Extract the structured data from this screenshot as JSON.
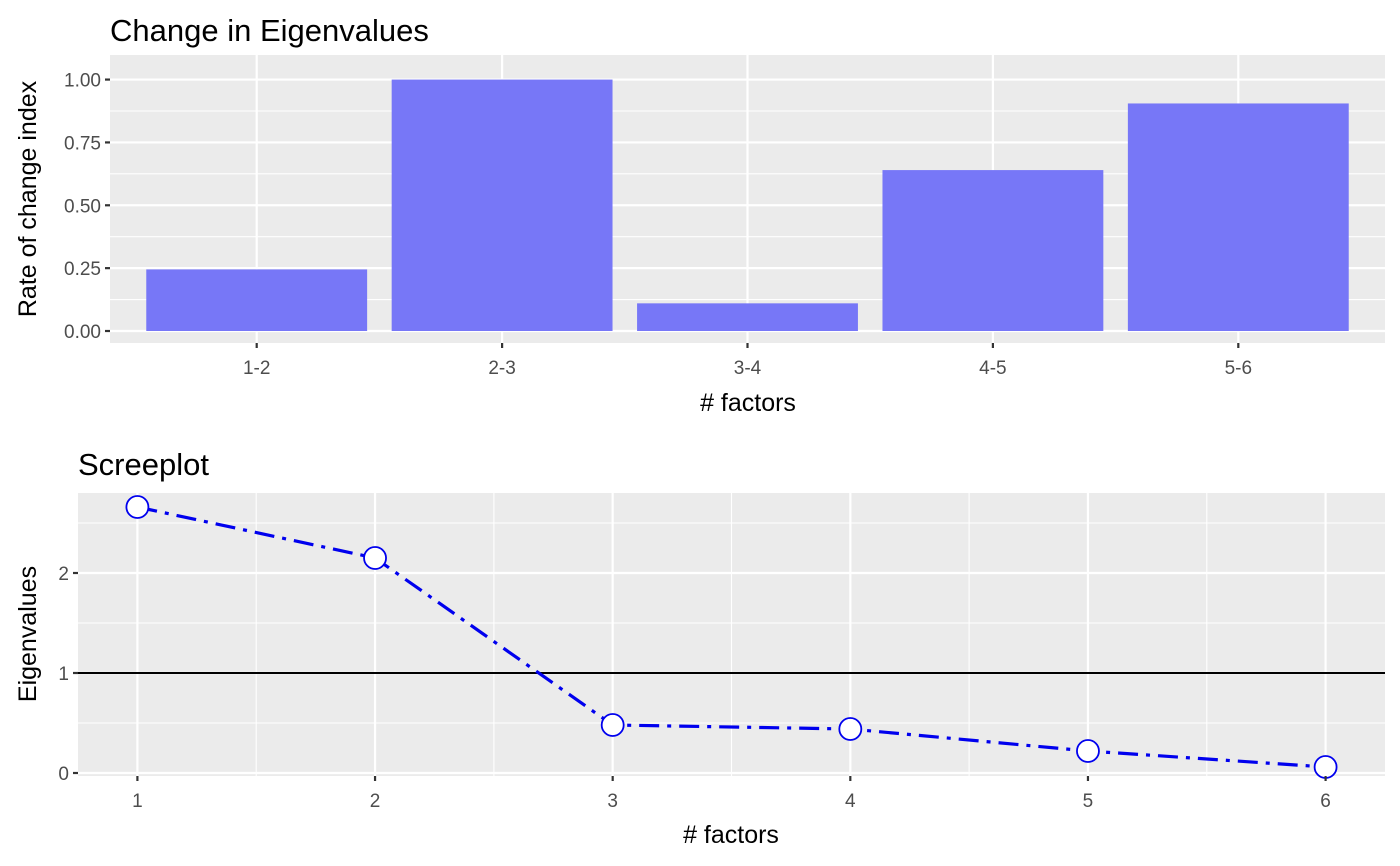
{
  "colors": {
    "panel_background": "#ebebeb",
    "grid": "#ffffff",
    "bar_fill": "#7777f7",
    "line": "#0000ee",
    "point_fill": "#ffffff",
    "reference_line": "#000000"
  },
  "chart_data": [
    {
      "type": "bar",
      "title": "Change in Eigenvalues",
      "xlabel": "# factors",
      "ylabel": "Rate of change index",
      "categories": [
        "1-2",
        "2-3",
        "3-4",
        "4-5",
        "5-6"
      ],
      "values": [
        0.245,
        1.0,
        0.11,
        0.64,
        0.905
      ],
      "ylim": [
        0,
        1.05
      ],
      "yticks": [
        "0.00",
        "0.25",
        "0.50",
        "0.75",
        "1.00"
      ],
      "grid": true,
      "legend": "none"
    },
    {
      "type": "line",
      "title": "Screeplot",
      "xlabel": "# factors",
      "ylabel": "Eigenvalues",
      "x": [
        1,
        2,
        3,
        4,
        5,
        6
      ],
      "values": [
        2.66,
        2.15,
        0.48,
        0.44,
        0.22,
        0.06
      ],
      "xlim": [
        0.75,
        6.25
      ],
      "ylim": [
        -0.03,
        2.8
      ],
      "xticks": [
        "1",
        "2",
        "3",
        "4",
        "5",
        "6"
      ],
      "yticks": [
        "0",
        "1",
        "2"
      ],
      "hline": 1,
      "line_style": "dashdot",
      "grid": true,
      "legend": "none"
    }
  ]
}
